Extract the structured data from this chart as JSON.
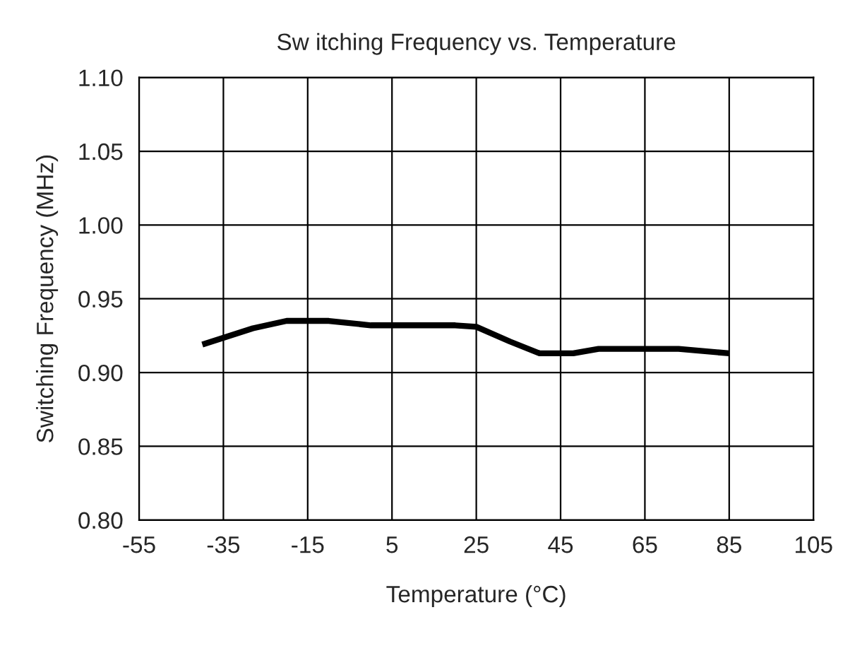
{
  "chart_data": {
    "type": "line",
    "title": "Sw itching Frequency vs. Temperature",
    "xlabel": "Temperature (°C)",
    "ylabel": "Switching Frequency (MHz)",
    "x": [
      -40,
      -28,
      -20,
      -10,
      0,
      20,
      25,
      33,
      40,
      48,
      54,
      73,
      85
    ],
    "series": [
      {
        "color": "#000000",
        "values": [
          0.919,
          0.93,
          0.935,
          0.935,
          0.932,
          0.932,
          0.931,
          0.921,
          0.913,
          0.913,
          0.916,
          0.916,
          0.913
        ]
      }
    ],
    "xlim": [
      -55,
      105
    ],
    "xticks": [
      -55,
      -35,
      -15,
      5,
      25,
      45,
      65,
      85,
      105
    ],
    "ylim": [
      0.8,
      1.1
    ],
    "yticks": [
      {
        "value": 0.8,
        "label": "0.80"
      },
      {
        "value": 0.85,
        "label": "0.85"
      },
      {
        "value": 0.9,
        "label": "0.90"
      },
      {
        "value": 0.95,
        "label": "0.95"
      },
      {
        "value": 1.0,
        "label": "1.00"
      },
      {
        "value": 1.05,
        "label": "1.05"
      },
      {
        "value": 1.1,
        "label": "1.10"
      }
    ],
    "grid": true,
    "legend": false
  }
}
